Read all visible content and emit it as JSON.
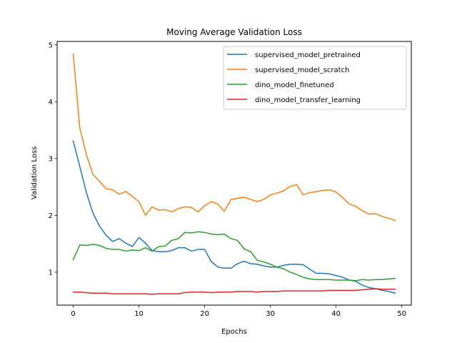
{
  "chart_data": {
    "type": "line",
    "title": "Moving Average Validation Loss",
    "xlabel": "Epochs",
    "ylabel": "Validation Loss",
    "xlim": [
      -2.45,
      51.45
    ],
    "ylim": [
      0.42,
      5.06
    ],
    "xticks": [
      0,
      10,
      20,
      30,
      40,
      50
    ],
    "yticks": [
      1,
      2,
      3,
      4,
      5
    ],
    "grid": false,
    "legend_position": "top-right",
    "x": [
      0,
      1,
      2,
      3,
      4,
      5,
      6,
      7,
      8,
      9,
      10,
      11,
      12,
      13,
      14,
      15,
      16,
      17,
      18,
      19,
      20,
      21,
      22,
      23,
      24,
      25,
      26,
      27,
      28,
      29,
      30,
      31,
      32,
      33,
      34,
      35,
      36,
      37,
      38,
      39,
      40,
      41,
      42,
      43,
      44,
      45,
      46,
      47,
      48,
      49
    ],
    "series": [
      {
        "name": "supervised_model_pretrained",
        "color": "#1f77b4",
        "values": [
          3.31,
          2.86,
          2.4,
          2.04,
          1.81,
          1.65,
          1.54,
          1.59,
          1.51,
          1.45,
          1.61,
          1.51,
          1.38,
          1.36,
          1.36,
          1.38,
          1.43,
          1.43,
          1.37,
          1.4,
          1.4,
          1.19,
          1.09,
          1.07,
          1.07,
          1.15,
          1.19,
          1.15,
          1.14,
          1.11,
          1.09,
          1.09,
          1.12,
          1.14,
          1.14,
          1.13,
          1.05,
          0.98,
          0.98,
          0.97,
          0.94,
          0.91,
          0.86,
          0.84,
          0.77,
          0.73,
          0.71,
          0.68,
          0.66,
          0.63
        ]
      },
      {
        "name": "supervised_model_scratch",
        "color": "#ff7f0e",
        "values": [
          4.84,
          3.54,
          3.07,
          2.72,
          2.6,
          2.47,
          2.45,
          2.37,
          2.42,
          2.33,
          2.24,
          2.0,
          2.15,
          2.09,
          2.1,
          2.06,
          2.12,
          2.15,
          2.14,
          2.06,
          2.17,
          2.24,
          2.2,
          2.07,
          2.28,
          2.3,
          2.32,
          2.28,
          2.24,
          2.28,
          2.36,
          2.39,
          2.43,
          2.51,
          2.54,
          2.36,
          2.4,
          2.42,
          2.44,
          2.45,
          2.41,
          2.31,
          2.2,
          2.16,
          2.08,
          2.02,
          2.03,
          1.98,
          1.95,
          1.91
        ]
      },
      {
        "name": "dino_model_finetuned",
        "color": "#2ca02c",
        "values": [
          1.22,
          1.48,
          1.47,
          1.49,
          1.47,
          1.42,
          1.4,
          1.4,
          1.37,
          1.39,
          1.38,
          1.43,
          1.37,
          1.45,
          1.46,
          1.56,
          1.59,
          1.7,
          1.69,
          1.71,
          1.7,
          1.67,
          1.66,
          1.67,
          1.59,
          1.56,
          1.41,
          1.36,
          1.21,
          1.18,
          1.14,
          1.09,
          1.06,
          1.0,
          0.96,
          0.91,
          0.88,
          0.87,
          0.87,
          0.87,
          0.86,
          0.86,
          0.86,
          0.85,
          0.87,
          0.86,
          0.87,
          0.87,
          0.88,
          0.89
        ]
      },
      {
        "name": "dino_model_transfer_learning",
        "color": "#d62728",
        "values": [
          0.65,
          0.65,
          0.64,
          0.63,
          0.63,
          0.63,
          0.62,
          0.62,
          0.62,
          0.62,
          0.62,
          0.62,
          0.61,
          0.62,
          0.62,
          0.62,
          0.62,
          0.64,
          0.65,
          0.65,
          0.65,
          0.64,
          0.65,
          0.65,
          0.65,
          0.66,
          0.66,
          0.66,
          0.65,
          0.66,
          0.66,
          0.66,
          0.67,
          0.67,
          0.67,
          0.67,
          0.67,
          0.67,
          0.67,
          0.68,
          0.68,
          0.68,
          0.68,
          0.68,
          0.69,
          0.7,
          0.71,
          0.7,
          0.7,
          0.7
        ]
      }
    ]
  }
}
